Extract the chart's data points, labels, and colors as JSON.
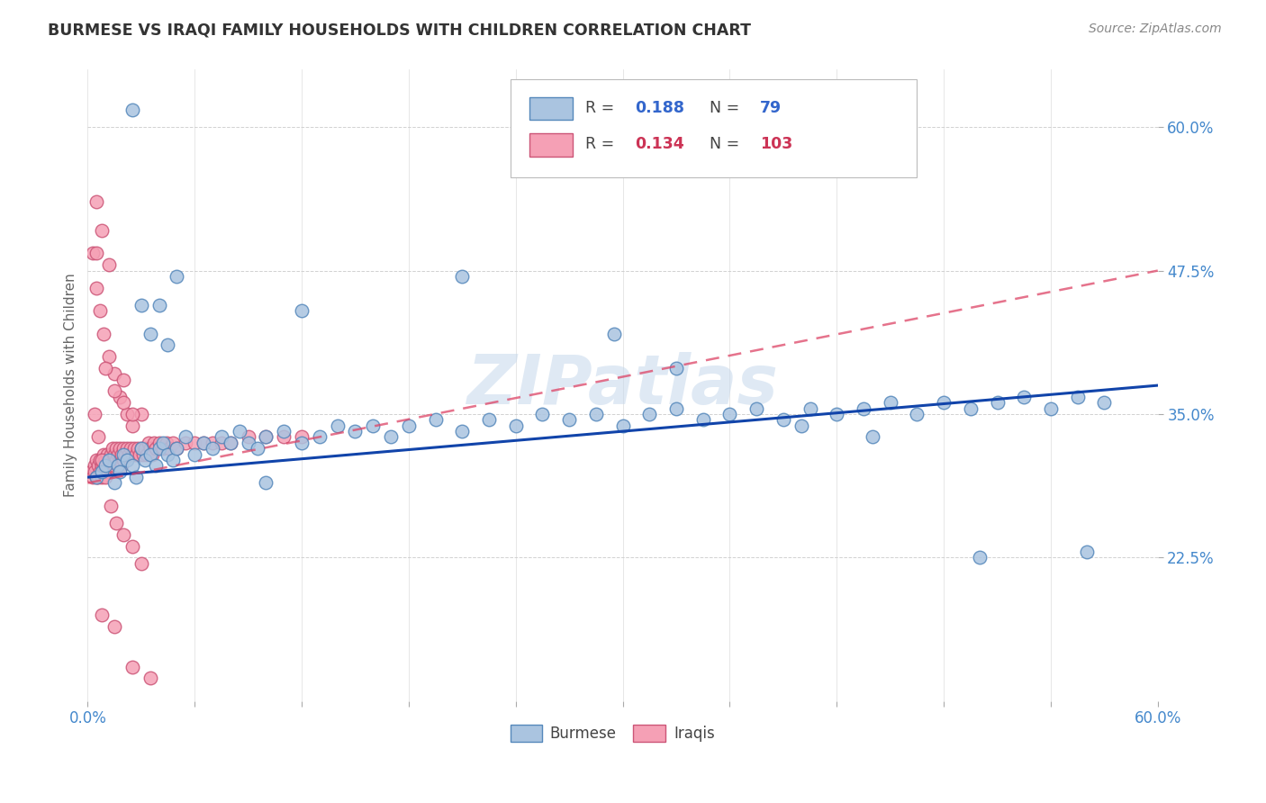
{
  "title": "BURMESE VS IRAQI FAMILY HOUSEHOLDS WITH CHILDREN CORRELATION CHART",
  "source": "Source: ZipAtlas.com",
  "ylabel": "Family Households with Children",
  "xlim": [
    0.0,
    0.6
  ],
  "ylim": [
    0.1,
    0.65
  ],
  "yticks": [
    0.225,
    0.35,
    0.475,
    0.6
  ],
  "ytick_labels": [
    "22.5%",
    "35.0%",
    "47.5%",
    "60.0%"
  ],
  "xticks": [
    0.0,
    0.06,
    0.12,
    0.18,
    0.24,
    0.3,
    0.36,
    0.42,
    0.48,
    0.54,
    0.6
  ],
  "burmese_color": "#aac4e0",
  "burmese_edge": "#5588bb",
  "iraqi_color": "#f5a0b5",
  "iraqi_edge": "#cc5577",
  "trendline_burmese_color": "#1144aa",
  "trendline_iraqi_color": "#dd4466",
  "watermark": "ZIPatlas",
  "burmese_x": [
    0.005,
    0.008,
    0.01,
    0.012,
    0.015,
    0.017,
    0.018,
    0.02,
    0.022,
    0.025,
    0.027,
    0.03,
    0.032,
    0.035,
    0.038,
    0.04,
    0.042,
    0.045,
    0.048,
    0.05,
    0.055,
    0.06,
    0.065,
    0.07,
    0.075,
    0.08,
    0.085,
    0.09,
    0.095,
    0.1,
    0.11,
    0.12,
    0.13,
    0.14,
    0.15,
    0.16,
    0.17,
    0.18,
    0.195,
    0.21,
    0.225,
    0.24,
    0.255,
    0.27,
    0.285,
    0.3,
    0.315,
    0.33,
    0.345,
    0.36,
    0.375,
    0.39,
    0.405,
    0.42,
    0.435,
    0.45,
    0.465,
    0.48,
    0.495,
    0.51,
    0.525,
    0.54,
    0.555,
    0.57,
    0.025,
    0.03,
    0.035,
    0.04,
    0.045,
    0.05,
    0.1,
    0.12,
    0.21,
    0.295,
    0.33,
    0.4,
    0.44,
    0.5,
    0.56
  ],
  "burmese_y": [
    0.295,
    0.3,
    0.305,
    0.31,
    0.29,
    0.305,
    0.3,
    0.315,
    0.31,
    0.305,
    0.295,
    0.32,
    0.31,
    0.315,
    0.305,
    0.32,
    0.325,
    0.315,
    0.31,
    0.32,
    0.33,
    0.315,
    0.325,
    0.32,
    0.33,
    0.325,
    0.335,
    0.325,
    0.32,
    0.33,
    0.335,
    0.325,
    0.33,
    0.34,
    0.335,
    0.34,
    0.33,
    0.34,
    0.345,
    0.335,
    0.345,
    0.34,
    0.35,
    0.345,
    0.35,
    0.34,
    0.35,
    0.355,
    0.345,
    0.35,
    0.355,
    0.345,
    0.355,
    0.35,
    0.355,
    0.36,
    0.35,
    0.36,
    0.355,
    0.36,
    0.365,
    0.355,
    0.365,
    0.36,
    0.615,
    0.445,
    0.42,
    0.445,
    0.41,
    0.47,
    0.29,
    0.44,
    0.47,
    0.42,
    0.39,
    0.34,
    0.33,
    0.225,
    0.23
  ],
  "iraqi_x": [
    0.002,
    0.003,
    0.004,
    0.004,
    0.005,
    0.005,
    0.006,
    0.006,
    0.007,
    0.007,
    0.008,
    0.008,
    0.009,
    0.009,
    0.01,
    0.01,
    0.011,
    0.011,
    0.012,
    0.012,
    0.013,
    0.013,
    0.014,
    0.014,
    0.015,
    0.015,
    0.016,
    0.016,
    0.017,
    0.017,
    0.018,
    0.018,
    0.019,
    0.019,
    0.02,
    0.02,
    0.021,
    0.022,
    0.023,
    0.024,
    0.025,
    0.026,
    0.027,
    0.028,
    0.029,
    0.03,
    0.031,
    0.032,
    0.033,
    0.034,
    0.035,
    0.036,
    0.037,
    0.038,
    0.04,
    0.042,
    0.044,
    0.046,
    0.048,
    0.05,
    0.055,
    0.06,
    0.065,
    0.07,
    0.075,
    0.08,
    0.09,
    0.1,
    0.11,
    0.12,
    0.003,
    0.005,
    0.007,
    0.009,
    0.012,
    0.015,
    0.018,
    0.022,
    0.025,
    0.004,
    0.006,
    0.008,
    0.01,
    0.013,
    0.016,
    0.02,
    0.025,
    0.03,
    0.005,
    0.008,
    0.012,
    0.02,
    0.03,
    0.008,
    0.015,
    0.025,
    0.005,
    0.01,
    0.015,
    0.02,
    0.025,
    0.035
  ],
  "iraqi_y": [
    0.3,
    0.295,
    0.305,
    0.3,
    0.295,
    0.31,
    0.305,
    0.295,
    0.31,
    0.3,
    0.305,
    0.295,
    0.315,
    0.305,
    0.31,
    0.3,
    0.315,
    0.305,
    0.31,
    0.3,
    0.315,
    0.305,
    0.32,
    0.31,
    0.315,
    0.305,
    0.32,
    0.31,
    0.315,
    0.305,
    0.32,
    0.31,
    0.315,
    0.305,
    0.32,
    0.31,
    0.315,
    0.32,
    0.315,
    0.32,
    0.315,
    0.32,
    0.315,
    0.32,
    0.315,
    0.32,
    0.315,
    0.32,
    0.315,
    0.325,
    0.32,
    0.315,
    0.325,
    0.32,
    0.325,
    0.32,
    0.325,
    0.32,
    0.325,
    0.32,
    0.325,
    0.325,
    0.325,
    0.325,
    0.325,
    0.325,
    0.33,
    0.33,
    0.33,
    0.33,
    0.49,
    0.46,
    0.44,
    0.42,
    0.4,
    0.385,
    0.365,
    0.35,
    0.34,
    0.35,
    0.33,
    0.31,
    0.295,
    0.27,
    0.255,
    0.245,
    0.235,
    0.22,
    0.535,
    0.51,
    0.48,
    0.38,
    0.35,
    0.175,
    0.165,
    0.13,
    0.49,
    0.39,
    0.37,
    0.36,
    0.35,
    0.12
  ]
}
